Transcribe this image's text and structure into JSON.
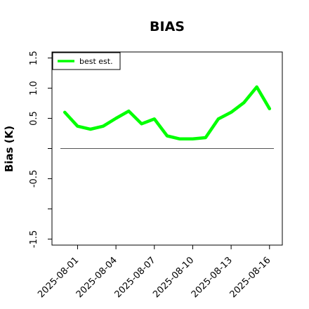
{
  "chart_data": {
    "type": "line",
    "title": "BIAS",
    "xlabel": "",
    "ylabel": "Bias (K)",
    "x": [
      "2025-07-31",
      "2025-08-01",
      "2025-08-02",
      "2025-08-03",
      "2025-08-04",
      "2025-08-05",
      "2025-08-06",
      "2025-08-07",
      "2025-08-08",
      "2025-08-09",
      "2025-08-10",
      "2025-08-11",
      "2025-08-12",
      "2025-08-13",
      "2025-08-14",
      "2025-08-15",
      "2025-08-16"
    ],
    "series": [
      {
        "name": "best est.",
        "color": "#00ff00",
        "values": [
          0.6,
          0.37,
          0.32,
          0.37,
          0.5,
          0.62,
          0.41,
          0.49,
          0.21,
          0.16,
          0.16,
          0.18,
          0.49,
          0.6,
          0.76,
          1.02,
          0.66
        ]
      }
    ],
    "reference_line": {
      "y": 0.0,
      "color": "#555555"
    },
    "xlim": [
      "2025-07-30",
      "2025-08-17"
    ],
    "ylim": [
      -1.6,
      1.6
    ],
    "yticks": [
      -1.5,
      -1.0,
      -0.5,
      0.0,
      0.5,
      1.0,
      1.5
    ],
    "ytick_labels": [
      "-1.5",
      "",
      "-0.5",
      "",
      "0.5",
      "1.0",
      "1.5"
    ],
    "xtick_labels": [
      "2025-08-01",
      "2025-08-04",
      "2025-08-07",
      "2025-08-10",
      "2025-08-13",
      "2025-08-16"
    ],
    "legend_position": "top-left",
    "grid": false
  }
}
